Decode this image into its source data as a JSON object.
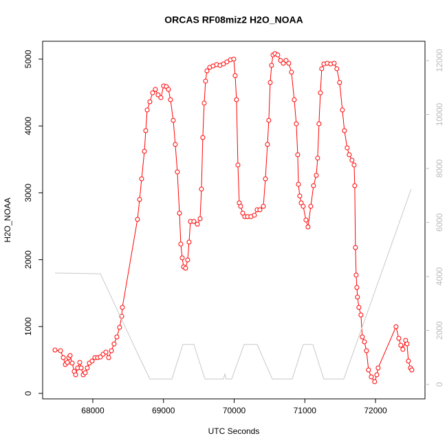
{
  "chart_data": {
    "type": "line",
    "title": "ORCAS RF08miz2 H2O_NOAA",
    "xlabel": "UTC Seconds",
    "ylabel": "H2O_NOAA",
    "xlim": [
      67290,
      72700
    ],
    "xticks": [
      68000,
      69000,
      70000,
      71000,
      72000
    ],
    "ylim": [
      -82,
      5267
    ],
    "yticks": [
      0,
      1000,
      2000,
      3000,
      4000,
      5000
    ],
    "y2lim": [
      -535,
      12713
    ],
    "y2ticks": [
      0,
      2000,
      4000,
      6000,
      8000,
      10000,
      12000
    ],
    "series": [
      {
        "name": "H2O_NOAA",
        "color": "#ff0000",
        "marker": "circle",
        "x": [
          67465,
          67543,
          67582,
          67611,
          67640,
          67660,
          67679,
          67708,
          67737,
          67757,
          67786,
          67815,
          67835,
          67864,
          67893,
          67922,
          67951,
          67990,
          68029,
          68068,
          68107,
          68146,
          68185,
          68224,
          68263,
          68301,
          68340,
          68379,
          68409,
          68418,
          68632,
          68662,
          68691,
          68730,
          68749,
          68769,
          68807,
          68846,
          68885,
          68924,
          68963,
          69002,
          69041,
          69070,
          69099,
          69138,
          69167,
          69196,
          69226,
          69245,
          69265,
          69284,
          69313,
          69342,
          69362,
          69381,
          69430,
          69479,
          69518,
          69537,
          69556,
          69576,
          69595,
          69615,
          69654,
          69702,
          69751,
          69800,
          69848,
          69897,
          69946,
          69994,
          70014,
          70033,
          70053,
          70072,
          70092,
          70121,
          70150,
          70189,
          70237,
          70286,
          70325,
          70364,
          70413,
          70442,
          70471,
          70490,
          70510,
          70529,
          70549,
          70578,
          70617,
          70656,
          70695,
          70734,
          70772,
          70811,
          70850,
          70879,
          70899,
          70909,
          70928,
          70948,
          70977,
          71016,
          71045,
          71084,
          71123,
          71162,
          71181,
          71200,
          71220,
          71239,
          71269,
          71317,
          71366,
          71415,
          71453,
          71492,
          71531,
          71560,
          71599,
          71628,
          71667,
          71697,
          71706,
          71716,
          71726,
          71736,
          71745,
          71765,
          71794,
          71813,
          71843,
          71872,
          71901,
          71940,
          71988,
          72018,
          72037,
          72290,
          72329,
          72358,
          72387,
          72426,
          72446,
          72465,
          72494,
          72514
        ],
        "values": [
          648,
          638,
          535,
          432,
          463,
          535,
          566,
          453,
          329,
          278,
          381,
          463,
          381,
          278,
          309,
          381,
          453,
          484,
          535,
          535,
          545,
          586,
          617,
          535,
          638,
          740,
          844,
          988,
          1152,
          1286,
          2603,
          2901,
          3210,
          3621,
          3930,
          4239,
          4362,
          4496,
          4547,
          4465,
          4424,
          4599,
          4588,
          4547,
          4393,
          4084,
          3724,
          3313,
          2695,
          2233,
          2027,
          1893,
          1872,
          1996,
          2263,
          2572,
          2572,
          2531,
          2613,
          3056,
          3827,
          4342,
          4671,
          4825,
          4877,
          4897,
          4918,
          4907,
          4928,
          4959,
          4990,
          5000,
          4753,
          4393,
          3416,
          2850,
          2798,
          2695,
          2644,
          2644,
          2644,
          2665,
          2747,
          2747,
          2798,
          3210,
          3724,
          4084,
          4650,
          4907,
          5062,
          5082,
          5062,
          4980,
          4938,
          4980,
          4938,
          4805,
          4393,
          4033,
          3570,
          3128,
          2953,
          2850,
          2798,
          2593,
          2490,
          2798,
          3107,
          3261,
          3519,
          4033,
          4496,
          4856,
          4928,
          4938,
          4928,
          4938,
          4856,
          4650,
          4239,
          3930,
          3673,
          3570,
          3488,
          3416,
          3107,
          2181,
          1770,
          1584,
          1440,
          1286,
          1173,
          844,
          772,
          638,
          350,
          247,
          175,
          278,
          381,
          998,
          823,
          720,
          658,
          792,
          741,
          484,
          381,
          350
        ]
      },
      {
        "color": "#c8c8c8",
        "axis": "y2",
        "x": [
          67465,
          68107,
          68661,
          68807,
          69119,
          69274,
          69430,
          69586,
          69848,
          69868,
          69887,
          69965,
          70140,
          70325,
          70539,
          70821,
          70977,
          71113,
          71268,
          71551,
          72504
        ],
        "values": [
          4127,
          4100,
          990,
          200,
          200,
          1480,
          1480,
          200,
          200,
          380,
          200,
          200,
          1480,
          1480,
          200,
          200,
          1480,
          1480,
          200,
          200,
          7235
        ]
      }
    ]
  }
}
